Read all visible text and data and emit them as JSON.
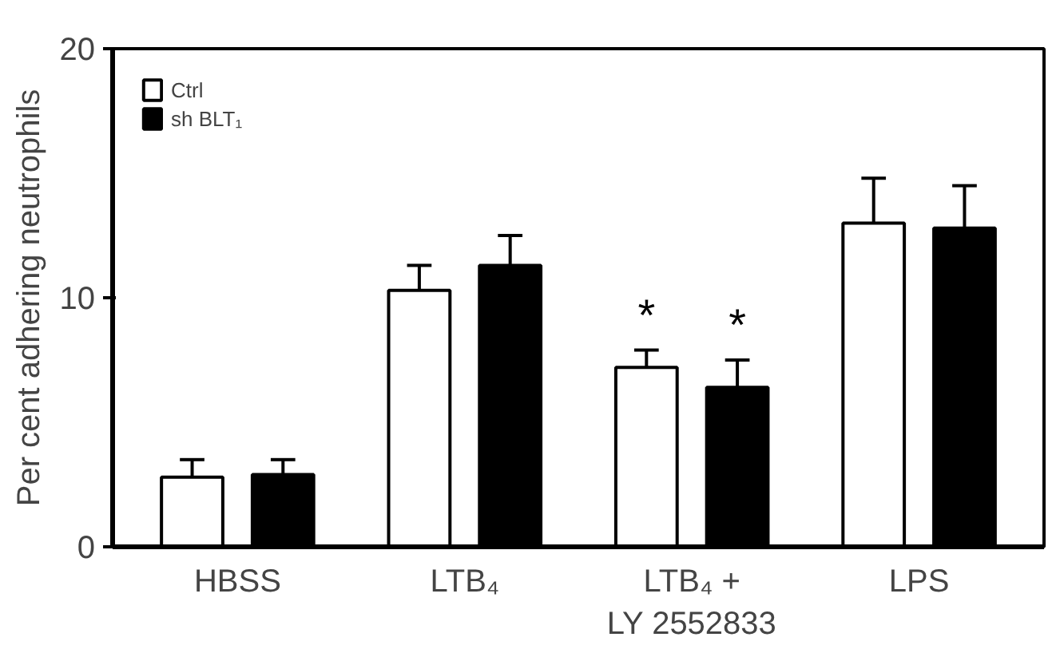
{
  "chart_data": {
    "type": "bar",
    "ylabel": "Per cent adhering neutrophils",
    "categories": [
      "HBSS",
      "LTB₄",
      "LTB₄ +\nLY 2552833",
      "LPS"
    ],
    "series": [
      {
        "name": "Ctrl",
        "color": "#ffffff",
        "values": [
          2.8,
          10.3,
          7.2,
          13.0
        ],
        "errors": [
          [
            2.8,
            3.5
          ],
          [
            10.3,
            11.3
          ],
          [
            7.2,
            7.9
          ],
          [
            13.0,
            14.8
          ]
        ]
      },
      {
        "name": "sh BLT₁",
        "color": "#000000",
        "values": [
          2.9,
          11.3,
          6.4,
          12.8
        ],
        "errors": [
          [
            2.9,
            3.5
          ],
          [
            11.3,
            12.5
          ],
          [
            6.4,
            7.5
          ],
          [
            12.8,
            14.5
          ]
        ]
      }
    ],
    "ylim": [
      0,
      20
    ],
    "yticks": [
      0,
      10,
      20
    ],
    "grid": false,
    "legend": "top left",
    "annotations": [
      "*",
      "*"
    ]
  }
}
